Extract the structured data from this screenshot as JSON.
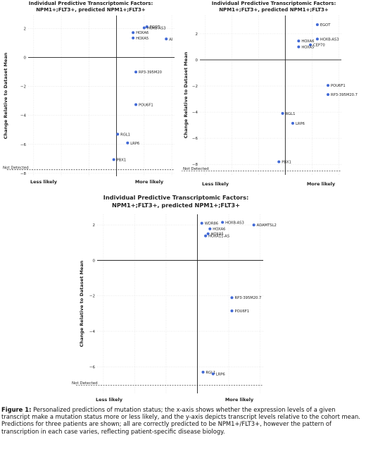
{
  "chart_data": [
    {
      "type": "scatter",
      "title_line1": "Individual Predictive Transcriptomic Factors:",
      "title_line2": "NPM1+;FLT3+, predicted NPM1+;FLT3+",
      "ylabel": "Change Relative to Dataset Mean",
      "xlabel_left": "Less likely",
      "xlabel_right": "More likely",
      "not_detected_label": "Not Detected",
      "ylim": [
        -8.2,
        2.9
      ],
      "xlim": [
        -1.6,
        1.05
      ],
      "yticks": [
        2,
        0,
        -2,
        -4,
        -6,
        -8
      ],
      "not_detected_y": -7.75,
      "points": [
        {
          "label": "EGOT",
          "x": 0.55,
          "y": 2.12
        },
        {
          "label": "HOXB-AS3",
          "x": 0.5,
          "y": 2.05
        },
        {
          "label": "HOXA6",
          "x": 0.3,
          "y": 1.72
        },
        {
          "label": "HOXA5",
          "x": 0.3,
          "y": 1.35
        },
        {
          "label": "AI",
          "x": 0.9,
          "y": 1.28
        },
        {
          "label": "RP3-395M20",
          "x": 0.35,
          "y": -1.0
        },
        {
          "label": "POU6F1",
          "x": 0.35,
          "y": -3.25
        },
        {
          "label": "RGL1",
          "x": 0.02,
          "y": -5.3
        },
        {
          "label": "LRP6",
          "x": 0.2,
          "y": -5.9
        },
        {
          "label": "PBX1",
          "x": -0.05,
          "y": -7.05
        }
      ]
    },
    {
      "type": "scatter",
      "title_line1": "Individual Predictive Transcriptomic Factors:",
      "title_line2": "NPM1+;FLT3+, predicted NPM1+;FLT3+",
      "ylabel": "Change Relative to Dataset Mean",
      "xlabel_left": "Less likely",
      "xlabel_right": "More likely",
      "not_detected_label": "Not Detected",
      "ylim": [
        -8.8,
        3.4
      ],
      "xlim": [
        -1.6,
        1.05
      ],
      "yticks": [
        2,
        0,
        -2,
        -4,
        -6,
        -8
      ],
      "not_detected_y": -8.5,
      "points": [
        {
          "label": "EGOT",
          "x": 0.6,
          "y": 2.7
        },
        {
          "label": "HOXB-AS3",
          "x": 0.6,
          "y": 1.6
        },
        {
          "label": "CEP70",
          "x": 0.47,
          "y": 1.15
        },
        {
          "label": "HOXA6",
          "x": 0.25,
          "y": 1.45
        },
        {
          "label": "HOXA5",
          "x": 0.25,
          "y": 1.0
        },
        {
          "label": "POU6F1",
          "x": 0.8,
          "y": -1.95
        },
        {
          "label": "RP3-395M20.7",
          "x": 0.8,
          "y": -2.65
        },
        {
          "label": "RGL1",
          "x": -0.05,
          "y": -4.1
        },
        {
          "label": "LRP6",
          "x": 0.14,
          "y": -4.85
        },
        {
          "label": "PBX1",
          "x": -0.12,
          "y": -7.8
        }
      ]
    },
    {
      "type": "scatter",
      "title_line1": "Individual Predictive Transcriptomic Factors:",
      "title_line2": "NPM1+;FLT3+, predicted NPM1+;FLT3+",
      "ylabel": "Change Relative to Dataset Mean",
      "xlabel_left": "Less likely",
      "xlabel_right": "More likely",
      "not_detected_label": "Not Detected",
      "ylim": [
        -7.5,
        2.6
      ],
      "xlim": [
        -1.6,
        1.05
      ],
      "yticks": [
        2,
        0,
        -2,
        -4,
        -6
      ],
      "not_detected_y": -7.05,
      "points": [
        {
          "label": "WDR86",
          "x": 0.07,
          "y": 2.1
        },
        {
          "label": "HOXB-AS3",
          "x": 0.4,
          "y": 2.15
        },
        {
          "label": "ADAMTSL2",
          "x": 0.9,
          "y": 2.0
        },
        {
          "label": "HOXA6",
          "x": 0.2,
          "y": 1.78
        },
        {
          "label": "HOXA5",
          "x": 0.17,
          "y": 1.5
        },
        {
          "label": "HOXA11-AS",
          "x": 0.13,
          "y": 1.38
        },
        {
          "label": "RP3-395M20.7",
          "x": 0.55,
          "y": -2.1
        },
        {
          "label": "POU6F1",
          "x": 0.55,
          "y": -2.85
        },
        {
          "label": "RGL1",
          "x": 0.09,
          "y": -6.3
        },
        {
          "label": "LRP6",
          "x": 0.25,
          "y": -6.4
        }
      ]
    }
  ],
  "caption": {
    "label": "Figure 1:",
    "text": "Personalized predictions of mutation status; the x-axis shows whether the expression levels of a given transcript make a mutation status more or less likely, and the y-axis depicts transcript levels relative to the cohort mean. Predictions for three patients are shown; all are correctly predicted to be NPM1+/FLT3+, however the pattern of transcription in each case varies, reflecting patient-specific disease biology."
  }
}
